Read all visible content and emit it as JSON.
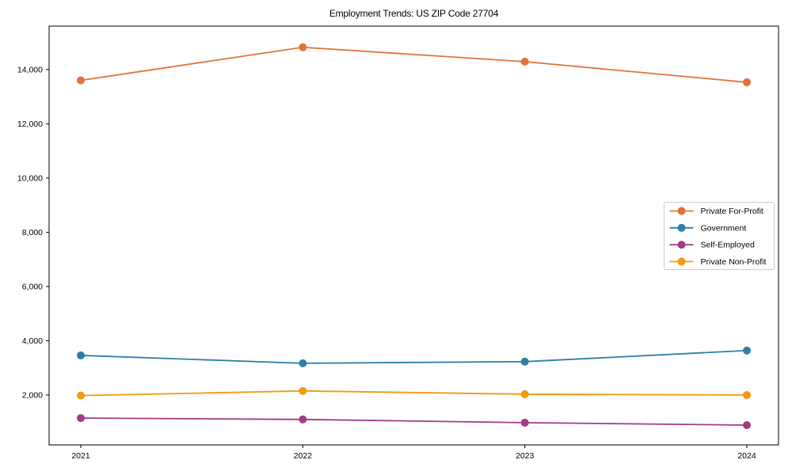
{
  "chart_data": {
    "type": "line",
    "title": "Employment Trends: US ZIP Code 27704",
    "xlabel": "",
    "ylabel": "",
    "x": [
      "2021",
      "2022",
      "2023",
      "2024"
    ],
    "series": [
      {
        "name": "Private For-Profit",
        "color": "#E2713B",
        "values": [
          13600,
          14820,
          14290,
          13530
        ]
      },
      {
        "name": "Government",
        "color": "#2E7FA5",
        "values": [
          3460,
          3170,
          3230,
          3640
        ]
      },
      {
        "name": "Self-Employed",
        "color": "#A23A86",
        "values": [
          1150,
          1100,
          980,
          890
        ]
      },
      {
        "name": "Private Non-Profit",
        "color": "#F09A0C",
        "values": [
          1980,
          2150,
          2030,
          2000
        ]
      }
    ],
    "ylim": [
      160,
      15600
    ],
    "yticks": [
      2000,
      4000,
      6000,
      8000,
      10000,
      12000,
      14000
    ],
    "grid": false,
    "legend_position": "center right",
    "marker": "circle",
    "axis_color": "#000000",
    "legend_border_color": "#cccccc",
    "legend_background": "#ffffff"
  }
}
